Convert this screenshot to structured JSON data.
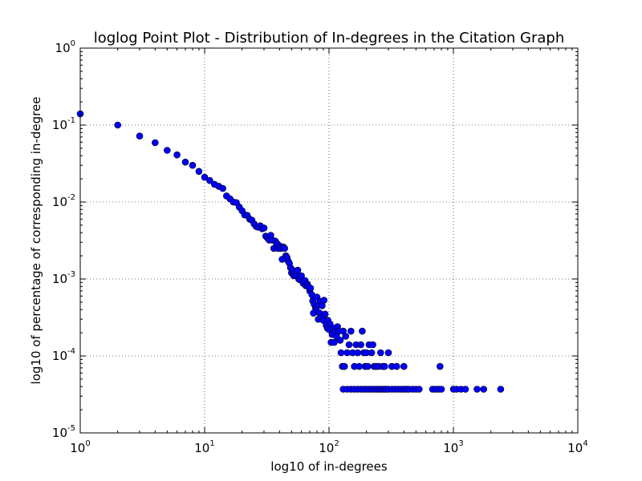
{
  "chart_data": {
    "type": "scatter",
    "title": "loglog Point Plot - Distribution of In-degrees in the Citation Graph",
    "xlabel": "log10 of in-degrees",
    "ylabel": "log10 of percentage of corresponding in-degree",
    "xscale": "log",
    "yscale": "log",
    "xlim": [
      1,
      10000
    ],
    "ylim": [
      1e-05,
      1
    ],
    "x_ticks": [
      {
        "base": "10",
        "exp": "0"
      },
      {
        "base": "10",
        "exp": "1"
      },
      {
        "base": "10",
        "exp": "2"
      },
      {
        "base": "10",
        "exp": "3"
      },
      {
        "base": "10",
        "exp": "4"
      }
    ],
    "y_ticks": [
      {
        "base": "10",
        "exp": "-5"
      },
      {
        "base": "10",
        "exp": "-4"
      },
      {
        "base": "10",
        "exp": "-3"
      },
      {
        "base": "10",
        "exp": "-2"
      },
      {
        "base": "10",
        "exp": "-1"
      },
      {
        "base": "10",
        "exp": "0"
      }
    ],
    "grid": true,
    "marker_color": "#0000ff",
    "points": [
      [
        1,
        0.14
      ],
      [
        2,
        0.1
      ],
      [
        3,
        0.072
      ],
      [
        4,
        0.059
      ],
      [
        5,
        0.047
      ],
      [
        6,
        0.041
      ],
      [
        7,
        0.033
      ],
      [
        8,
        0.03
      ],
      [
        9,
        0.025
      ],
      [
        10,
        0.021
      ],
      [
        11,
        0.019
      ],
      [
        12,
        0.017
      ],
      [
        13,
        0.016
      ],
      [
        14,
        0.015
      ],
      [
        15,
        0.012
      ],
      [
        16,
        0.011
      ],
      [
        17,
        0.01
      ],
      [
        18,
        0.0098
      ],
      [
        19,
        0.0086
      ],
      [
        20,
        0.0077
      ],
      [
        21,
        0.0068
      ],
      [
        22,
        0.0067
      ],
      [
        23,
        0.006
      ],
      [
        24,
        0.0058
      ],
      [
        25,
        0.0052
      ],
      [
        26,
        0.0048
      ],
      [
        27,
        0.0047
      ],
      [
        28,
        0.0049
      ],
      [
        29,
        0.0045
      ],
      [
        30,
        0.0046
      ],
      [
        31,
        0.0036
      ],
      [
        32,
        0.0034
      ],
      [
        33,
        0.0032
      ],
      [
        34,
        0.0037
      ],
      [
        35,
        0.0032
      ],
      [
        36,
        0.0025
      ],
      [
        37,
        0.0031
      ],
      [
        38,
        0.0029
      ],
      [
        39,
        0.0025
      ],
      [
        40,
        0.0027
      ],
      [
        41,
        0.0025
      ],
      [
        42,
        0.0018
      ],
      [
        43,
        0.0026
      ],
      [
        44,
        0.0025
      ],
      [
        45,
        0.002
      ],
      [
        46,
        0.0019
      ],
      [
        47,
        0.0017
      ],
      [
        48,
        0.0016
      ],
      [
        49,
        0.0014
      ],
      [
        50,
        0.0012
      ],
      [
        51,
        0.0013
      ],
      [
        52,
        0.0011
      ],
      [
        53,
        0.0012
      ],
      [
        55,
        0.0011
      ],
      [
        56,
        0.0013
      ],
      [
        57,
        0.001
      ],
      [
        58,
        0.00098
      ],
      [
        60,
        0.0011
      ],
      [
        62,
        0.00088
      ],
      [
        64,
        0.00095
      ],
      [
        65,
        0.00082
      ],
      [
        67,
        0.00086
      ],
      [
        68,
        0.0008
      ],
      [
        70,
        0.0007
      ],
      [
        71,
        0.00076
      ],
      [
        73,
        0.00062
      ],
      [
        74,
        0.00052
      ],
      [
        75,
        0.00036
      ],
      [
        76,
        0.00047
      ],
      [
        78,
        0.00042
      ],
      [
        79,
        0.0004
      ],
      [
        80,
        0.00058
      ],
      [
        81,
        0.00046
      ],
      [
        82,
        0.0003
      ],
      [
        84,
        0.00036
      ],
      [
        85,
        0.00051
      ],
      [
        87,
        0.00032
      ],
      [
        88,
        0.00045
      ],
      [
        90,
        0.00029
      ],
      [
        91,
        0.00053
      ],
      [
        93,
        0.00035
      ],
      [
        95,
        0.00025
      ],
      [
        97,
        0.00023
      ],
      [
        98,
        0.00029
      ],
      [
        100,
        0.00022
      ],
      [
        102,
        0.00026
      ],
      [
        104,
        0.00015
      ],
      [
        106,
        0.00019
      ],
      [
        108,
        0.00023
      ],
      [
        110,
        0.00015
      ],
      [
        112,
        0.00021
      ],
      [
        115,
        0.00018
      ],
      [
        117,
        0.00024
      ],
      [
        120,
        0.00021
      ],
      [
        123,
        0.00016
      ],
      [
        125,
        0.00011
      ],
      [
        128,
        7.3e-05
      ],
      [
        130,
        0.00021
      ],
      [
        133,
        7.3e-05
      ],
      [
        136,
        0.00018
      ],
      [
        140,
        0.00011
      ],
      [
        145,
        0.00014
      ],
      [
        150,
        0.00021
      ],
      [
        155,
        0.00011
      ],
      [
        160,
        7.3e-05
      ],
      [
        165,
        0.00014
      ],
      [
        170,
        0.00011
      ],
      [
        175,
        7.3e-05
      ],
      [
        180,
        0.00014
      ],
      [
        185,
        0.00021
      ],
      [
        190,
        0.00011
      ],
      [
        195,
        7.3e-05
      ],
      [
        200,
        0.00011
      ],
      [
        205,
        7.3e-05
      ],
      [
        210,
        0.00014
      ],
      [
        220,
        0.00011
      ],
      [
        225,
        0.00014
      ],
      [
        230,
        7.3e-05
      ],
      [
        240,
        7.3e-05
      ],
      [
        250,
        7.3e-05
      ],
      [
        260,
        0.00011
      ],
      [
        270,
        7.3e-05
      ],
      [
        280,
        7.3e-05
      ],
      [
        300,
        0.00011
      ],
      [
        320,
        7.3e-05
      ],
      [
        350,
        7.3e-05
      ],
      [
        400,
        7.3e-05
      ],
      [
        780,
        7.3e-05
      ],
      [
        130,
        3.7e-05
      ],
      [
        140,
        3.7e-05
      ],
      [
        150,
        3.7e-05
      ],
      [
        160,
        3.7e-05
      ],
      [
        170,
        3.7e-05
      ],
      [
        180,
        3.7e-05
      ],
      [
        190,
        3.7e-05
      ],
      [
        200,
        3.7e-05
      ],
      [
        210,
        3.7e-05
      ],
      [
        220,
        3.7e-05
      ],
      [
        230,
        3.7e-05
      ],
      [
        240,
        3.7e-05
      ],
      [
        250,
        3.7e-05
      ],
      [
        260,
        3.7e-05
      ],
      [
        270,
        3.7e-05
      ],
      [
        280,
        3.7e-05
      ],
      [
        290,
        3.7e-05
      ],
      [
        300,
        3.7e-05
      ],
      [
        320,
        3.7e-05
      ],
      [
        340,
        3.7e-05
      ],
      [
        360,
        3.7e-05
      ],
      [
        380,
        3.7e-05
      ],
      [
        400,
        3.7e-05
      ],
      [
        420,
        3.7e-05
      ],
      [
        440,
        3.7e-05
      ],
      [
        470,
        3.7e-05
      ],
      [
        500,
        3.7e-05
      ],
      [
        530,
        3.7e-05
      ],
      [
        680,
        3.7e-05
      ],
      [
        720,
        3.7e-05
      ],
      [
        760,
        3.7e-05
      ],
      [
        800,
        3.7e-05
      ],
      [
        1000,
        3.7e-05
      ],
      [
        1060,
        3.7e-05
      ],
      [
        1150,
        3.7e-05
      ],
      [
        1250,
        3.7e-05
      ],
      [
        1550,
        3.7e-05
      ],
      [
        1750,
        3.7e-05
      ],
      [
        2400,
        3.7e-05
      ]
    ]
  }
}
